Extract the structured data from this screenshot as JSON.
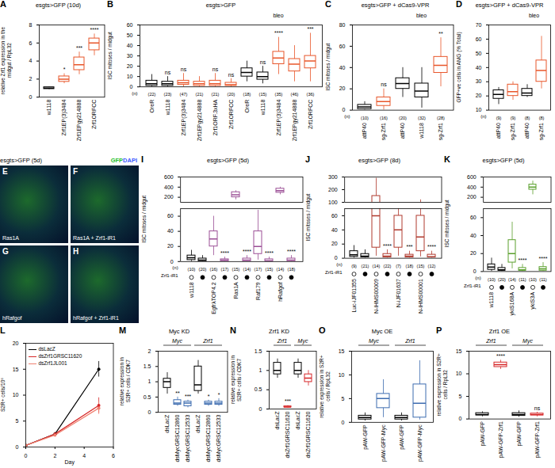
{
  "chart_data": [
    {
      "panel": "A",
      "type": "box",
      "title": "esgts>GFP (10d)",
      "y_label": "relative Zrf1 expression in the midgut / RpL32",
      "categories": [
        "w1118",
        "Zrf1EP(3)3484",
        "Zrf1EPgy214888",
        "Zrf1ORFCC"
      ],
      "boxes": [
        [
          0.85,
          0.9,
          1,
          1.1,
          1.15
        ],
        [
          1.5,
          1.7,
          2,
          2.3,
          2.6
        ],
        [
          2.5,
          3,
          3.6,
          4.4,
          5
        ],
        [
          4.6,
          5.2,
          6,
          6.5,
          7
        ]
      ],
      "colors": [
        "#000000",
        "#e8562a",
        "#e8562a",
        "#e8562a"
      ],
      "significance": [
        null,
        "*",
        "***",
        "****"
      ],
      "ylim": [
        0,
        8
      ],
      "yticks": [
        0,
        2,
        4,
        6,
        8
      ]
    },
    {
      "panel": "B",
      "type": "box",
      "title": "esgts>GFP",
      "y_label": "ISC mitoses / midgut",
      "categories": [
        "OreR",
        "w1118",
        "Zrf1EP(3)3484",
        "Zrf1EPgy214888",
        "Zrf1ORF.3xHA",
        "Zrf1ORFCC",
        "OreR",
        "w1118",
        "Zrf1EP(3)3484",
        "Zrf1EPgy214888",
        "Zrf1ORFCC"
      ],
      "boxes": [
        [
          0,
          1,
          3,
          6,
          12
        ],
        [
          0,
          1,
          3,
          5,
          10
        ],
        [
          0,
          2,
          4,
          6,
          13
        ],
        [
          0,
          1,
          3,
          5,
          10
        ],
        [
          0,
          1,
          3,
          6,
          13
        ],
        [
          0,
          1,
          2,
          4,
          8
        ],
        [
          5,
          10,
          14,
          18,
          25
        ],
        [
          3,
          7,
          10,
          14,
          20
        ],
        [
          12,
          22,
          28,
          34,
          48
        ],
        [
          5,
          15,
          22,
          27,
          40
        ],
        [
          5,
          18,
          25,
          30,
          52
        ]
      ],
      "colors": [
        "#000000",
        "#000000",
        "#e8562a",
        "#e8562a",
        "#e8562a",
        "#e8562a",
        "#000000",
        "#000000",
        "#e8562a",
        "#e8562a",
        "#e8562a"
      ],
      "significance": [
        null,
        "ns",
        "ns",
        null,
        "ns",
        "ns",
        null,
        "ns",
        "****",
        null,
        "***"
      ],
      "n_label": "(n)",
      "n": [
        "(22)",
        "(23)",
        "(47)",
        "(21)",
        "(21)",
        "(20)",
        "(18)",
        "(15)",
        "(35)",
        "(46)",
        "(36)"
      ],
      "annotations": [
        {
          "text": "bleo",
          "from": 6,
          "to": 10
        }
      ],
      "ylim": [
        0,
        60
      ],
      "yticks": [
        0,
        10,
        20,
        30,
        40,
        50,
        60
      ]
    },
    {
      "panel": "C",
      "type": "box",
      "title": "esgts>GFP + dCas9-VPR",
      "y_label": "ISC mitoses / midgut",
      "categories": [
        "attP40",
        "sg-Zrf1",
        "attP40",
        "w1118",
        "sg-Zrf1"
      ],
      "boxes": [
        [
          0,
          1,
          3,
          5,
          8
        ],
        [
          0,
          4,
          8,
          12,
          20
        ],
        [
          12,
          20,
          25,
          30,
          40
        ],
        [
          2,
          12,
          18,
          25,
          40
        ],
        [
          22,
          35,
          42,
          50,
          68
        ]
      ],
      "colors": [
        "#000000",
        "#e8562a",
        "#000000",
        "#000000",
        "#e8562a"
      ],
      "significance": [
        null,
        "ns",
        null,
        null,
        "**"
      ],
      "n_label": "(n)",
      "n": [
        "(10)",
        "(16)",
        "(20)",
        "(32)",
        "(28)"
      ],
      "annotations": [
        {
          "text": "bleo",
          "from": 2,
          "to": 4
        }
      ],
      "ylim": [
        0,
        80
      ],
      "yticks": [
        0,
        20,
        40,
        60,
        80
      ]
    },
    {
      "panel": "D",
      "type": "box",
      "title": "esgts>GFP + dCas9-VPR",
      "y_label": "GFP+ve cells in AMG (% Total)",
      "categories": [
        "attP40",
        "sg-Zrf1",
        "attP40",
        "sg-Zrf1"
      ],
      "boxes": [
        [
          14,
          18,
          21,
          24,
          26
        ],
        [
          17,
          20,
          23,
          28,
          30
        ],
        [
          19,
          20,
          22,
          25,
          28
        ],
        [
          25,
          30,
          38,
          45,
          62
        ]
      ],
      "colors": [
        "#000000",
        "#e8562a",
        "#000000",
        "#e8562a"
      ],
      "n_label": "(n)",
      "n": [
        "(9)",
        "(9)",
        "(8)",
        "(8)"
      ],
      "annotations": [
        {
          "text": "bleo",
          "from": 2,
          "to": 3
        }
      ],
      "ylim": [
        10,
        70
      ],
      "yticks": [
        10,
        20,
        30,
        40,
        50,
        60,
        70
      ]
    },
    {
      "panel": "I",
      "type": "box",
      "title": "esgts>GFP (5d)",
      "y_label": "ISC mitoses / midgut",
      "categories": [
        "w1118",
        null,
        "EgfrλTOP4.2",
        null,
        "Ras1A",
        null,
        "Raf179",
        null,
        "hRafgof",
        null
      ],
      "boxes": [
        [
          0,
          2,
          5,
          8,
          15
        ],
        [
          0,
          0,
          2,
          4,
          8
        ],
        [
          8,
          20,
          30,
          40,
          60
        ],
        [
          0,
          0,
          2,
          3,
          6
        ],
        [
          150,
          200,
          250,
          300,
          330
        ],
        [
          0,
          0,
          2,
          4,
          8
        ],
        [
          2,
          10,
          20,
          40,
          68
        ],
        [
          0,
          0,
          1,
          3,
          6
        ],
        [
          250,
          290,
          330,
          370,
          400
        ],
        [
          0,
          0,
          2,
          4,
          8
        ]
      ],
      "colors": [
        "#000000",
        "#000000",
        "#9b4f96",
        "#9b4f96",
        "#9b4f96",
        "#9b4f96",
        "#9b4f96",
        "#9b4f96",
        "#9b4f96",
        "#9b4f96"
      ],
      "significance": [
        null,
        null,
        null,
        "****",
        null,
        "****",
        null,
        "****",
        null,
        "****"
      ],
      "n_label": "(n)",
      "n": [
        "(10)",
        "(20)",
        "(16)",
        "(17)",
        "(15)",
        "(14)",
        "(17)",
        "(15)",
        "(14)",
        "(18)"
      ],
      "knockdown_label": "Zrf1-iR1",
      "knockdown": [
        false,
        true,
        false,
        true,
        false,
        true,
        false,
        true,
        false,
        true
      ],
      "ylim": [
        0,
        600
      ],
      "ybreak": [
        70,
        100
      ],
      "yticks": [
        0,
        20,
        40,
        60,
        200,
        400,
        600
      ]
    },
    {
      "panel": "J",
      "type": "box",
      "title": "esgts>GFP (8d)",
      "y_label": "ISC mitoses / midgut",
      "categories": [
        "Luc-iJF01355",
        null,
        "N-iHMS00009",
        null,
        "N-iJF01637",
        null,
        "N-iHMS00001",
        null
      ],
      "boxes": [
        [
          0,
          2,
          5,
          10,
          18
        ],
        [
          0,
          1,
          3,
          6,
          12
        ],
        [
          3,
          15,
          60,
          150,
          290
        ],
        [
          0,
          1,
          3,
          6,
          12
        ],
        [
          3,
          15,
          40,
          60,
          100
        ],
        [
          0,
          1,
          3,
          5,
          10
        ],
        [
          2,
          10,
          30,
          60,
          120
        ],
        [
          0,
          1,
          2,
          5,
          10
        ]
      ],
      "colors": [
        "#000000",
        "#000000",
        "#b03a2e",
        "#b03a2e",
        "#b03a2e",
        "#b03a2e",
        "#b03a2e",
        "#b03a2e"
      ],
      "significance": [
        null,
        null,
        null,
        "****",
        null,
        "***",
        null,
        "****"
      ],
      "n_label": "(n)",
      "n": [
        "(9)",
        "(21)",
        "(14)",
        "(22)",
        "(7)",
        "(18)",
        "(15)",
        "(12)"
      ],
      "knockdown_label": "Zrf1-iR1",
      "knockdown": [
        false,
        true,
        false,
        true,
        false,
        true,
        false,
        true
      ],
      "ylim": [
        0,
        300
      ],
      "ybreak": [
        70,
        100
      ],
      "yticks": [
        0,
        20,
        40,
        60,
        100,
        200,
        300
      ]
    },
    {
      "panel": "K",
      "type": "box",
      "title": "esgts>GFP (5d)",
      "y_label": "ISC mitoses / midgut",
      "categories": [
        "w1118",
        null,
        "ykiS168A",
        null,
        "ykiS3A",
        null
      ],
      "boxes": [
        [
          0,
          2,
          5,
          8,
          15
        ],
        [
          0,
          1,
          2,
          4,
          8
        ],
        [
          3,
          10,
          20,
          35,
          55
        ],
        [
          0,
          1,
          2,
          4,
          8
        ],
        [
          250,
          350,
          400,
          450,
          520
        ],
        [
          0,
          1,
          3,
          5,
          10
        ]
      ],
      "colors": [
        "#000000",
        "#000000",
        "#5aa02c",
        "#5aa02c",
        "#5aa02c",
        "#5aa02c"
      ],
      "significance": [
        null,
        null,
        null,
        "****",
        null,
        "****"
      ],
      "n_label": "(n)",
      "n": [
        "(10)",
        "(20)",
        "(14)",
        "(11)",
        "(10)",
        "(11)"
      ],
      "knockdown_label": "Zrf1-iR1",
      "knockdown": [
        false,
        true,
        false,
        true,
        false,
        true
      ],
      "ylim": [
        0,
        600
      ],
      "ybreak": [
        70,
        100
      ],
      "yticks": [
        0,
        20,
        40,
        60,
        200,
        400,
        600
      ]
    },
    {
      "panel": "L",
      "type": "line",
      "y_label": "S2R+ cells/10⁶",
      "x_label": "Day",
      "x": [
        0,
        2,
        5
      ],
      "series": [
        {
          "name": "dsLacZ",
          "color": "#000000",
          "values": [
            0.3,
            2.5,
            15
          ],
          "errors": [
            0,
            0.3,
            1.5
          ]
        },
        {
          "name": "dsZrf1GRSC11620",
          "color": "#d62728",
          "values": [
            0.3,
            2.5,
            8
          ],
          "errors": [
            0,
            0.3,
            1.5
          ]
        },
        {
          "name": "dsZrf1JL001",
          "color": "#f08070",
          "values": [
            0.3,
            2.3,
            7.5
          ],
          "errors": [
            0,
            0.3,
            1.2
          ]
        }
      ],
      "marker": "circle",
      "legend": "top-left",
      "xlim": [
        0,
        6
      ],
      "xticks": [
        0,
        2,
        4,
        6
      ],
      "ylim": [
        0,
        20
      ],
      "yticks": [
        0,
        5,
        10,
        15,
        20
      ]
    },
    {
      "panel": "M",
      "type": "box",
      "title": "Myc KD",
      "y_label": "relative expression in S2R+ cells / CDK7",
      "categories": [
        "dsLacZ",
        "dsMycGRSC12860",
        "dsMycGRSC12533",
        "dsLacZ",
        "dsMycGRSC12860",
        "dsMycGRSC12533"
      ],
      "groups": [
        {
          "text": "Myc",
          "from": 0,
          "to": 2
        },
        {
          "text": "Zrf1",
          "from": 3,
          "to": 5
        }
      ],
      "boxes": [
        [
          0.6,
          0.8,
          1,
          1.1,
          1.3
        ],
        [
          0.2,
          0.25,
          0.3,
          0.4,
          0.5
        ],
        [
          0.15,
          0.2,
          0.3,
          0.35,
          0.4
        ],
        [
          0.6,
          0.7,
          0.9,
          1.5,
          1.7
        ],
        [
          0.2,
          0.25,
          0.3,
          0.35,
          0.4
        ],
        [
          0.2,
          0.25,
          0.3,
          0.35,
          0.45
        ]
      ],
      "colors": [
        "#000000",
        "#3d6cb0",
        "#3d6cb0",
        "#000000",
        "#3d6cb0",
        "#3d6cb0"
      ],
      "significance": [
        null,
        "**",
        "***",
        null,
        "*",
        "*"
      ],
      "ylim": [
        0,
        2
      ],
      "yticks": [
        0,
        0.5,
        1,
        1.5,
        2
      ]
    },
    {
      "panel": "N",
      "type": "box",
      "title": "Zrf1 KD",
      "y_label": "relative expression in S2R+ cells / CDK7",
      "categories": [
        "dsLacZ",
        "dsZrf1GRSC11620",
        "dsLacZ",
        "dsZrf1GRSC11620"
      ],
      "groups": [
        {
          "text": "Zrf1",
          "from": 0,
          "to": 1
        },
        {
          "text": "Myc",
          "from": 2,
          "to": 3
        }
      ],
      "boxes": [
        [
          0.8,
          0.9,
          1,
          1.2,
          1.3
        ],
        [
          0.02,
          0.04,
          0.05,
          0.07,
          0.09
        ],
        [
          0.8,
          0.9,
          1,
          1.2,
          1.3
        ],
        [
          0.6,
          0.7,
          0.8,
          0.9,
          1
        ]
      ],
      "colors": [
        "#000000",
        "#d62728",
        "#000000",
        "#d62728"
      ],
      "significance": [
        null,
        "***",
        null,
        null
      ],
      "ylim": [
        0,
        1.5
      ],
      "yticks": [
        0,
        0.5,
        1,
        1.5
      ]
    },
    {
      "panel": "O",
      "type": "box",
      "title": "Myc OE",
      "y_label": "relative expression in S2R+ cells / RpL32",
      "categories": [
        "pAW-GFP",
        "pAW-GFP-Myc",
        "pAW-GFP",
        "pAW-GFP-Myc"
      ],
      "groups": [
        {
          "text": "Myc",
          "from": 0,
          "to": 1
        },
        {
          "text": "Zrf1",
          "from": 2,
          "to": 3
        }
      ],
      "boxes": [
        [
          0.3,
          0.6,
          1,
          1.4,
          2
        ],
        [
          1,
          3,
          5,
          6,
          9
        ],
        [
          0.3,
          0.6,
          1,
          1.4,
          2
        ],
        [
          0.5,
          1,
          4,
          8,
          13
        ]
      ],
      "colors": [
        "#000000",
        "#3d6cb0",
        "#000000",
        "#3d6cb0"
      ],
      "ylim": [
        0,
        15
      ],
      "yticks": [
        0,
        5,
        10,
        15
      ]
    },
    {
      "panel": "P",
      "type": "box",
      "title": "Zrf1 OE",
      "y_label": "relative expression in S2R+ cells / RpL32",
      "categories": [
        "pAW-GFP",
        "pAW-GFP-Zrf1",
        "pAW-GFP",
        "pAW-GFP-Zrf1"
      ],
      "groups": [
        {
          "text": "Zrf1",
          "from": 0,
          "to": 1
        },
        {
          "text": "Myc",
          "from": 2,
          "to": 3
        }
      ],
      "boxes": [
        [
          0.5,
          0.8,
          1,
          1.3,
          1.6
        ],
        [
          11,
          11.5,
          12,
          12.5,
          13
        ],
        [
          0.4,
          0.7,
          1,
          1.3,
          1.8
        ],
        [
          0.5,
          0.8,
          1,
          1.2,
          1.5
        ]
      ],
      "colors": [
        "#000000",
        "#d62728",
        "#000000",
        "#d62728"
      ],
      "significance": [
        null,
        "****",
        null,
        "ns"
      ],
      "ylim": [
        0,
        15
      ],
      "yticks": [
        0,
        5,
        10,
        15
      ]
    }
  ],
  "micrographs": {
    "title": "esgts>GFP (5d)",
    "stain": [
      {
        "text": "GFP",
        "color": "#22c02a"
      },
      {
        "text": "DAPI",
        "color": "#3b5bff"
      }
    ],
    "panels": [
      {
        "panel": "E",
        "label": "Ras1A"
      },
      {
        "panel": "F",
        "label": "Ras1A + Zrf1-iR1"
      },
      {
        "panel": "G",
        "label": "hRafgof"
      },
      {
        "panel": "H",
        "label": "hRafgof + Zrf1-iR1"
      }
    ]
  }
}
